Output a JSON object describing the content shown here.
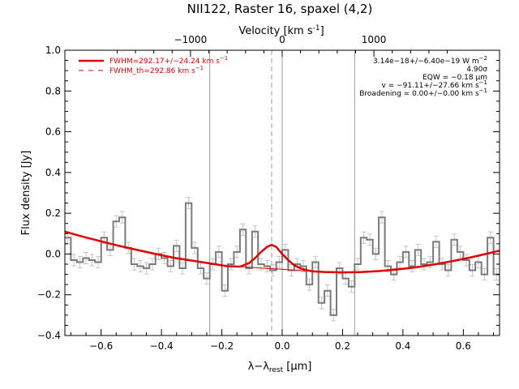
{
  "chart_data": {
    "type": "line",
    "title": "NII122, Raster 16, spaxel (4,2)",
    "xlabel": "λ−λrest [μm]",
    "xlabel_main": "λ−λ",
    "xlabel_sub": "rest",
    "xlabel_unit": " [μm]",
    "ylabel": "Flux density [Jy]",
    "top_axis_label": "Velocity [km s-1]",
    "top_axis_label_main": "Velocity [km s",
    "top_axis_label_sup": "-1",
    "top_axis_label_tail": "]",
    "xlim": [
      -0.72,
      0.72
    ],
    "ylim": [
      -0.4,
      1.0
    ],
    "top_vlim": [
      -2370,
      2370
    ],
    "x_ticks": [
      -0.6,
      -0.4,
      -0.2,
      0.0,
      0.2,
      0.4,
      0.6
    ],
    "x_tick_labels": [
      "−0.6",
      "−0.4",
      "−0.2",
      "0.0",
      "0.2",
      "0.4",
      "0.6"
    ],
    "y_ticks": [
      -0.4,
      -0.2,
      0.0,
      0.2,
      0.4,
      0.6,
      0.8,
      1.0
    ],
    "y_tick_labels": [
      "−0.4",
      "−0.2",
      "0.0",
      "0.2",
      "0.4",
      "0.6",
      "0.8",
      "1.0"
    ],
    "top_ticks": [
      -1000,
      0,
      1000
    ],
    "top_tick_labels": [
      "−1000",
      "0",
      "1000"
    ],
    "vertical_lines": [
      {
        "x": -0.24,
        "style": "solid",
        "color": "#9a9a9a"
      },
      {
        "x": 0.0,
        "style": "solid",
        "color": "#9a9a9a"
      },
      {
        "x": 0.24,
        "style": "solid",
        "color": "#9a9a9a"
      },
      {
        "x": -0.035,
        "style": "dashed",
        "color": "#9a9a9a"
      }
    ],
    "series": [
      {
        "name": "spectrum",
        "style": "steps",
        "color": "#7a7a7a",
        "x": [
          -0.71,
          -0.69,
          -0.67,
          -0.65,
          -0.63,
          -0.61,
          -0.59,
          -0.57,
          -0.55,
          -0.53,
          -0.51,
          -0.49,
          -0.47,
          -0.45,
          -0.43,
          -0.41,
          -0.39,
          -0.37,
          -0.35,
          -0.33,
          -0.31,
          -0.29,
          -0.27,
          -0.25,
          -0.23,
          -0.21,
          -0.19,
          -0.17,
          -0.15,
          -0.13,
          -0.11,
          -0.09,
          -0.07,
          -0.05,
          -0.03,
          -0.01,
          0.01,
          0.03,
          0.05,
          0.07,
          0.09,
          0.11,
          0.13,
          0.15,
          0.17,
          0.19,
          0.21,
          0.23,
          0.25,
          0.27,
          0.29,
          0.31,
          0.33,
          0.35,
          0.37,
          0.39,
          0.41,
          0.43,
          0.45,
          0.47,
          0.49,
          0.51,
          0.53,
          0.55,
          0.57,
          0.59,
          0.61,
          0.63,
          0.65,
          0.67,
          0.69,
          0.71
        ],
        "y": [
          0.08,
          -0.03,
          -0.04,
          -0.02,
          -0.03,
          -0.04,
          0.08,
          0.02,
          0.16,
          0.18,
          0.03,
          -0.05,
          -0.06,
          -0.07,
          -0.05,
          0.0,
          -0.02,
          -0.06,
          0.04,
          -0.07,
          0.25,
          0.03,
          -0.07,
          -0.12,
          -0.05,
          0.01,
          -0.18,
          -0.05,
          0.01,
          0.12,
          -0.07,
          0.11,
          -0.05,
          -0.06,
          -0.08,
          -0.04,
          0.02,
          -0.08,
          -0.05,
          -0.06,
          -0.15,
          -0.04,
          -0.24,
          -0.18,
          -0.3,
          -0.07,
          -0.12,
          -0.16,
          -0.05,
          0.08,
          0.07,
          0.0,
          0.18,
          -0.06,
          -0.1,
          -0.04,
          0.01,
          -0.06,
          0.02,
          -0.05,
          -0.04,
          0.06,
          -0.05,
          -0.08,
          0.07,
          0.01,
          -0.03,
          -0.08,
          -0.04,
          -0.1,
          0.08,
          -0.1
        ],
        "error": 0.028
      },
      {
        "name": "FWHM=292.17+/−24.24 km s−1",
        "style": "solid",
        "color": "#e00000",
        "x": [
          -0.72,
          -0.66,
          -0.6,
          -0.54,
          -0.48,
          -0.42,
          -0.36,
          -0.3,
          -0.24,
          -0.18,
          -0.14,
          -0.11,
          -0.09,
          -0.07,
          -0.05,
          -0.035,
          -0.02,
          0.0,
          0.02,
          0.04,
          0.06,
          0.08,
          0.1,
          0.14,
          0.2,
          0.26,
          0.32,
          0.38,
          0.44,
          0.5,
          0.56,
          0.62,
          0.68,
          0.72
        ],
        "y": [
          0.11,
          0.085,
          0.062,
          0.04,
          0.02,
          0.0,
          -0.018,
          -0.032,
          -0.046,
          -0.06,
          -0.062,
          -0.045,
          -0.02,
          0.01,
          0.035,
          0.045,
          0.035,
          0.0,
          -0.03,
          -0.055,
          -0.07,
          -0.079,
          -0.085,
          -0.088,
          -0.09,
          -0.089,
          -0.084,
          -0.076,
          -0.066,
          -0.052,
          -0.036,
          -0.018,
          0.002,
          0.016
        ]
      },
      {
        "name": "FWHM_th=292.86 km s−1",
        "style": "dashed",
        "color": "#e00000",
        "x": [],
        "y": []
      }
    ],
    "continuum_visible": true,
    "legend": {
      "placement": "top-left",
      "entries": [
        "FWHM=292.17+/−24.24 km s",
        "FWHM_th=292.86 km s"
      ],
      "sup": "−1"
    },
    "annotations": {
      "placement": "top-right",
      "lines": [
        {
          "text": "3.14e−18+/−6.40e−19 W m",
          "sup": "−2"
        },
        {
          "text": "4.90σ",
          "sup": ""
        },
        {
          "text": "EQW = −0.18 μm",
          "sup": ""
        },
        {
          "text": "v = −91.11+/−27.66 km s",
          "sup": "−1"
        },
        {
          "text": "Broadening = 0.00+/−0.00 km s",
          "sup": "−1"
        }
      ]
    },
    "grid": false
  }
}
